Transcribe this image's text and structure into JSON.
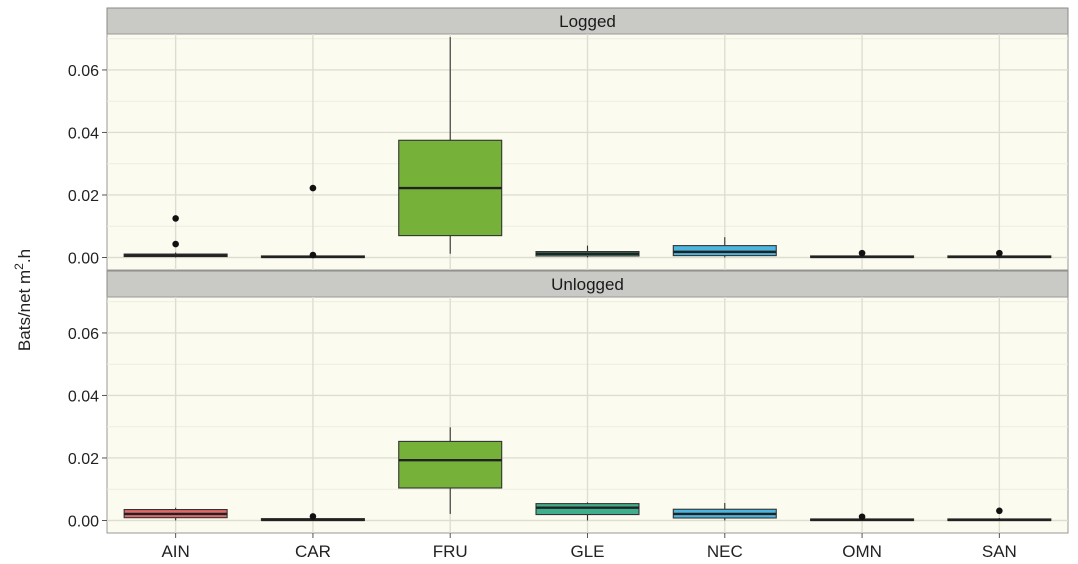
{
  "chart_data": {
    "type": "boxplot",
    "ylabel_main": "Bats/net m",
    "ylabel_sup": "2",
    "ylabel_tail": ".h",
    "categories": [
      "AIN",
      "CAR",
      "FRU",
      "GLE",
      "NEC",
      "OMN",
      "SAN"
    ],
    "yticks": [
      "0.00",
      "0.02",
      "0.04",
      "0.06"
    ],
    "ylim": [
      -0.004,
      0.0715
    ],
    "facets": [
      {
        "label": "Logged",
        "boxes": [
          {
            "category": "AIN",
            "min": 0.0,
            "q1": 0.0003,
            "median": 0.0006,
            "q3": 0.0011,
            "max": 0.0016,
            "outliers": [
              0.0043,
              0.0125
            ],
            "color": "#e06a6a"
          },
          {
            "category": "CAR",
            "min": 0.0,
            "q1": 0.0,
            "median": 0.0002,
            "q3": 0.0005,
            "max": 0.0007,
            "outliers": [
              0.0008,
              0.0222
            ],
            "color": "#c9a233"
          },
          {
            "category": "FRU",
            "min": 0.0012,
            "q1": 0.007,
            "median": 0.0222,
            "q3": 0.0375,
            "max": 0.0705,
            "outliers": [],
            "color": "#76b23a"
          },
          {
            "category": "GLE",
            "min": 0.0,
            "q1": 0.0005,
            "median": 0.0012,
            "q3": 0.0019,
            "max": 0.0038,
            "outliers": [],
            "color": "#3fae8c"
          },
          {
            "category": "NEC",
            "min": 0.0,
            "q1": 0.0006,
            "median": 0.0018,
            "q3": 0.0038,
            "max": 0.0065,
            "outliers": [],
            "color": "#4bb6df"
          },
          {
            "category": "OMN",
            "min": 0.0,
            "q1": 0.0,
            "median": 0.0002,
            "q3": 0.0005,
            "max": 0.0008,
            "outliers": [
              0.0014
            ],
            "color": "#7f8ecf"
          },
          {
            "category": "SAN",
            "min": 0.0,
            "q1": 0.0,
            "median": 0.0002,
            "q3": 0.0005,
            "max": 0.0008,
            "outliers": [
              0.0014
            ],
            "color": "#d57fc4"
          }
        ]
      },
      {
        "label": "Unlogged",
        "boxes": [
          {
            "category": "AIN",
            "min": 0.0,
            "q1": 0.0009,
            "median": 0.0021,
            "q3": 0.0035,
            "max": 0.0041,
            "outliers": [],
            "color": "#e06a6a"
          },
          {
            "category": "CAR",
            "min": 0.0,
            "q1": 0.0,
            "median": 0.0002,
            "q3": 0.0006,
            "max": 0.0009,
            "outliers": [
              0.0013
            ],
            "color": "#c9a233"
          },
          {
            "category": "FRU",
            "min": 0.0021,
            "q1": 0.0104,
            "median": 0.0193,
            "q3": 0.0253,
            "max": 0.0298,
            "outliers": [],
            "color": "#76b23a"
          },
          {
            "category": "GLE",
            "min": 0.0,
            "q1": 0.0019,
            "median": 0.0041,
            "q3": 0.0054,
            "max": 0.0058,
            "outliers": [],
            "color": "#3fae8c"
          },
          {
            "category": "NEC",
            "min": 0.0,
            "q1": 0.0008,
            "median": 0.0021,
            "q3": 0.0036,
            "max": 0.0056,
            "outliers": [],
            "color": "#4bb6df"
          },
          {
            "category": "OMN",
            "min": 0.0,
            "q1": 0.0,
            "median": 0.0002,
            "q3": 0.0005,
            "max": 0.0007,
            "outliers": [
              0.0012
            ],
            "color": "#7f8ecf"
          },
          {
            "category": "SAN",
            "min": 0.0,
            "q1": 0.0,
            "median": 0.0002,
            "q3": 0.0005,
            "max": 0.0008,
            "outliers": [
              0.0031
            ],
            "color": "#d57fc4"
          }
        ]
      }
    ],
    "grid": true,
    "strip_color": "#c9c9c5",
    "panel_color": "#fbfbf0"
  }
}
